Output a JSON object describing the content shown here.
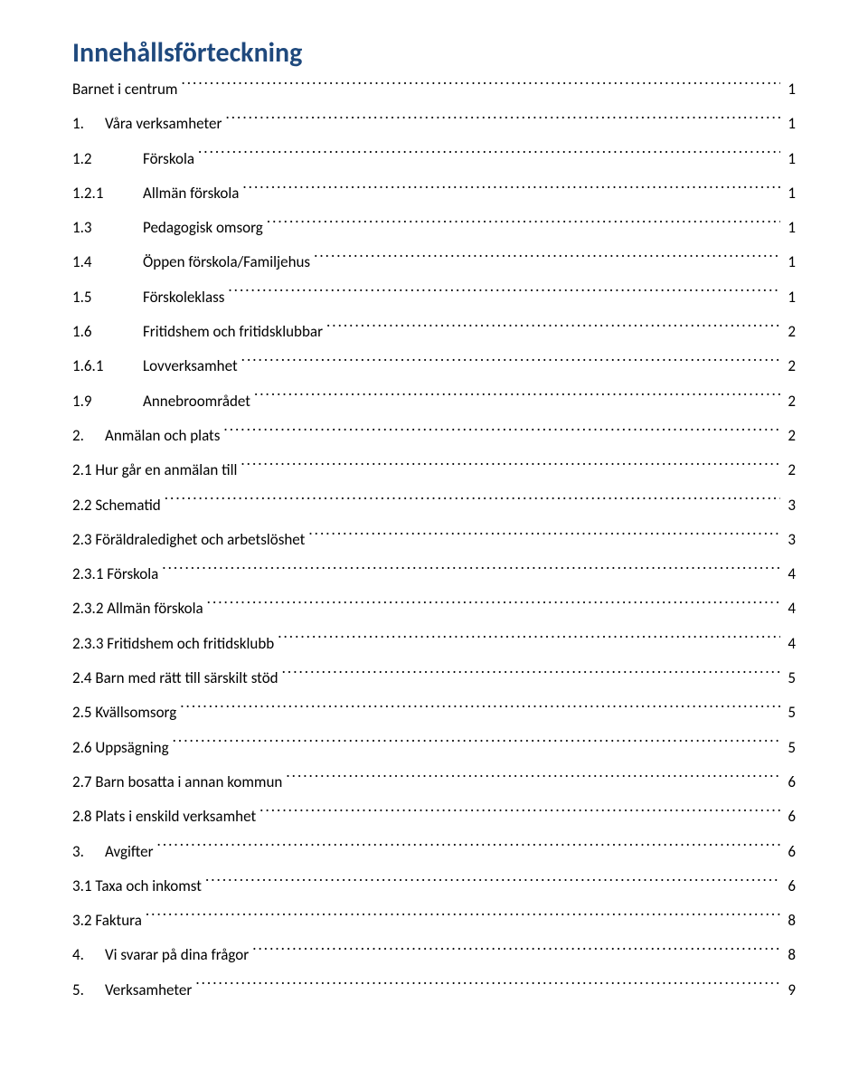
{
  "colors": {
    "title_color": "#1f497d",
    "text_color": "#000000",
    "background": "#ffffff"
  },
  "typography": {
    "title_fontsize_pt": 22,
    "entry_fontsize_pt": 12,
    "font_family": "Calibri"
  },
  "title": "Innehållsförteckning",
  "entries": [
    {
      "level": 0,
      "num": "",
      "label": "Barnet i centrum",
      "page": "1"
    },
    {
      "level": 1,
      "num": "1.",
      "label": "Våra verksamheter",
      "page": "1"
    },
    {
      "level": 2,
      "num": "1.2",
      "label": "Förskola",
      "page": "1"
    },
    {
      "level": 2,
      "num": "1.2.1",
      "label": "Allmän förskola",
      "page": "1"
    },
    {
      "level": 2,
      "num": "1.3",
      "label": "Pedagogisk omsorg",
      "page": "1"
    },
    {
      "level": 2,
      "num": "1.4",
      "label": "Öppen förskola/Familjehus",
      "page": "1"
    },
    {
      "level": 2,
      "num": "1.5",
      "label": "Förskoleklass",
      "page": "1"
    },
    {
      "level": 2,
      "num": "1.6",
      "label": "Fritidshem och fritidsklubbar",
      "page": "2"
    },
    {
      "level": 2,
      "num": "1.6.1",
      "label": "Lovverksamhet",
      "page": "2"
    },
    {
      "level": 2,
      "num": "1.9",
      "label": "Annebroområdet",
      "page": "2"
    },
    {
      "level": 1,
      "num": "2.",
      "label": "Anmälan och plats",
      "page": "2"
    },
    {
      "level": 0,
      "num": "",
      "label": "2.1 Hur går en anmälan till",
      "page": "2"
    },
    {
      "level": 0,
      "num": "",
      "label": "2.2 Schematid",
      "page": "3"
    },
    {
      "level": 0,
      "num": "",
      "label": "2.3 Föräldraledighet och arbetslöshet",
      "page": "3"
    },
    {
      "level": 0,
      "num": "",
      "label": "2.3.1 Förskola",
      "page": "4"
    },
    {
      "level": 0,
      "num": "",
      "label": "2.3.2 Allmän förskola",
      "page": "4"
    },
    {
      "level": 0,
      "num": "",
      "label": "2.3.3 Fritidshem och fritidsklubb",
      "page": "4"
    },
    {
      "level": 0,
      "num": "",
      "label": "2.4 Barn med rätt till särskilt stöd",
      "page": "5"
    },
    {
      "level": 0,
      "num": "",
      "label": "2.5 Kvällsomsorg",
      "page": "5"
    },
    {
      "level": 0,
      "num": "",
      "label": "2.6 Uppsägning",
      "page": "5"
    },
    {
      "level": 0,
      "num": "",
      "label": "2.7 Barn bosatta i annan kommun",
      "page": "6"
    },
    {
      "level": 0,
      "num": "",
      "label": "2.8 Plats i enskild verksamhet",
      "page": "6"
    },
    {
      "level": 1,
      "num": "3.",
      "label": "Avgifter",
      "page": "6"
    },
    {
      "level": 0,
      "num": "",
      "label": "3.1 Taxa och inkomst",
      "page": "6"
    },
    {
      "level": 0,
      "num": "",
      "label": "3.2 Faktura",
      "page": "8"
    },
    {
      "level": 1,
      "num": "4.",
      "label": "Vi svarar på dina frågor",
      "page": "8"
    },
    {
      "level": 1,
      "num": "5.",
      "label": "Verksamheter",
      "page": "9"
    }
  ]
}
